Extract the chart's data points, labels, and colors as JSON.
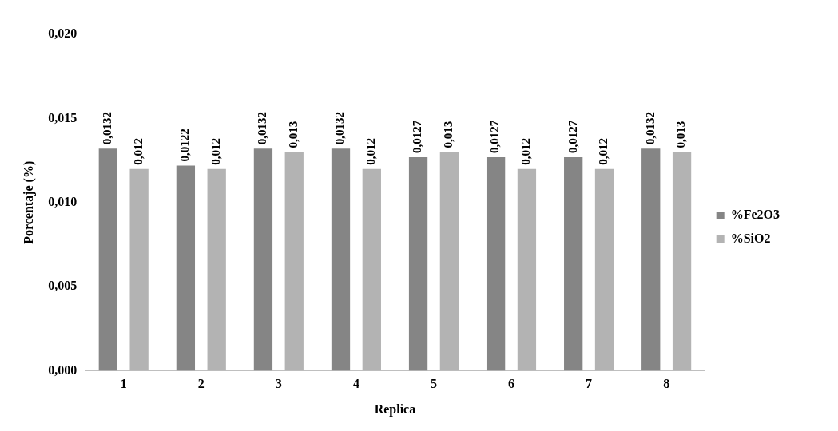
{
  "chart_data": {
    "type": "bar",
    "xlabel": "Replica",
    "ylabel": "Porcentaje (%)",
    "categories": [
      "1",
      "2",
      "3",
      "4",
      "5",
      "6",
      "7",
      "8"
    ],
    "series": [
      {
        "name": "%Fe2O3",
        "color": "#858585",
        "values": [
          0.0132,
          0.0122,
          0.0132,
          0.0132,
          0.0127,
          0.0127,
          0.0127,
          0.0132
        ],
        "value_labels": [
          "0,0132",
          "0,0122",
          "0,0132",
          "0,0132",
          "0,0127",
          "0,0127",
          "0,0127",
          "0,0132"
        ]
      },
      {
        "name": "%SiO2",
        "color": "#b3b3b3",
        "values": [
          0.012,
          0.012,
          0.013,
          0.012,
          0.013,
          0.012,
          0.012,
          0.013
        ],
        "value_labels": [
          "0,012",
          "0,012",
          "0,013",
          "0,012",
          "0,013",
          "0,012",
          "0,012",
          "0,013"
        ]
      }
    ],
    "ylim": [
      0,
      0.02
    ],
    "yticks": [
      {
        "value": 0,
        "label": "0,000"
      },
      {
        "value": 0.005,
        "label": "0,005"
      },
      {
        "value": 0.01,
        "label": "0,010"
      },
      {
        "value": 0.015,
        "label": "0,015"
      },
      {
        "value": 0.02,
        "label": "0,020"
      }
    ],
    "grid": false,
    "legend": "right"
  }
}
